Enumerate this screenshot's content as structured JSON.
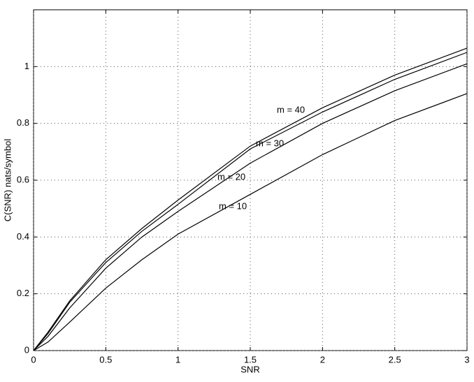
{
  "chart_data": {
    "type": "line",
    "x_label": "SNR",
    "y_label": "C(SNR) nats/symbol",
    "x": [
      0,
      0.1,
      0.25,
      0.5,
      0.75,
      1,
      1.5,
      2,
      2.5,
      3
    ],
    "series": [
      {
        "color": "#000000",
        "values": [
          0,
          0.03,
          0.1,
          0.22,
          0.32,
          0.41,
          0.55,
          0.69,
          0.81,
          0.905
        ]
      },
      {
        "color": "#000000",
        "values": [
          0,
          0.05,
          0.15,
          0.29,
          0.4,
          0.49,
          0.66,
          0.8,
          0.915,
          1.01
        ]
      },
      {
        "color": "#000000",
        "values": [
          0,
          0.06,
          0.17,
          0.31,
          0.42,
          0.515,
          0.71,
          0.84,
          0.955,
          1.05
        ]
      },
      {
        "color": "#000000",
        "values": [
          0,
          0.065,
          0.175,
          0.32,
          0.43,
          0.53,
          0.72,
          0.855,
          0.97,
          1.065
        ]
      }
    ],
    "annotations": [
      "m = 10",
      "m = 20",
      "m = 30",
      "m = 40"
    ],
    "xlim": [
      0,
      3
    ],
    "ylim": [
      0,
      1.2
    ],
    "xticks": [
      0,
      0.5,
      1,
      1.5,
      2,
      2.5,
      3
    ],
    "yticks": [
      0,
      0.2,
      0.4,
      0.6,
      0.8,
      1
    ],
    "grid": true
  }
}
